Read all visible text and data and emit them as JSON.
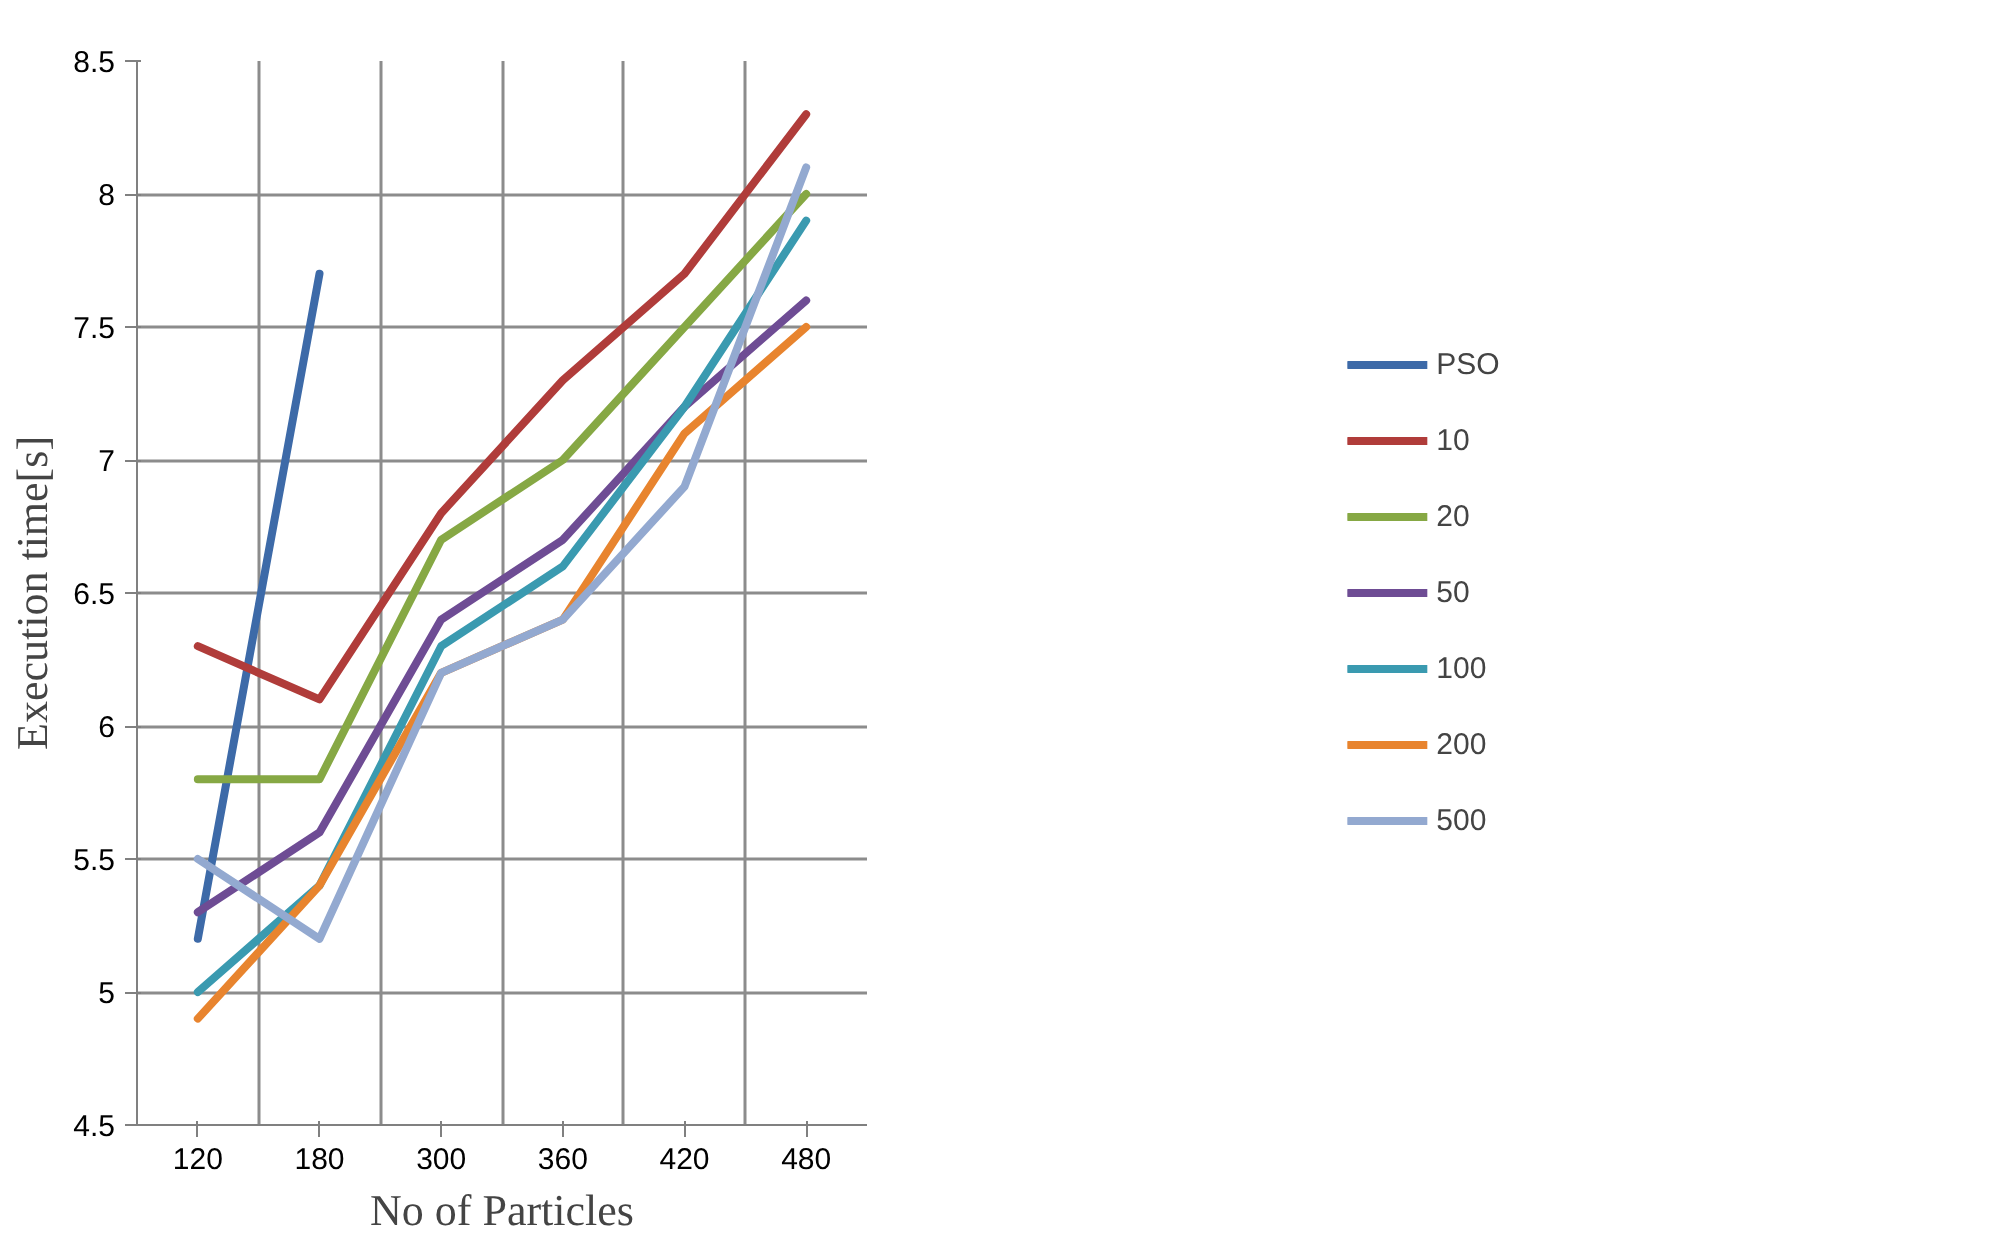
{
  "chart_data": {
    "type": "line",
    "xlabel": "No of Particles",
    "ylabel": "Execution time[s]",
    "categories": [
      "120",
      "180",
      "300",
      "360",
      "420",
      "480"
    ],
    "ylim": [
      4.5,
      8.5
    ],
    "yticks": [
      4.5,
      5,
      5.5,
      6,
      6.5,
      7,
      7.5,
      8,
      8.5
    ],
    "grid": true,
    "legend": "right",
    "series": [
      {
        "name": "PSO",
        "color": "#3d6aa8",
        "values": [
          5.2,
          7.7,
          null,
          null,
          null,
          null
        ]
      },
      {
        "name": "10",
        "color": "#b03c3a",
        "values": [
          6.3,
          6.1,
          6.8,
          7.3,
          7.7,
          8.3
        ]
      },
      {
        "name": "20",
        "color": "#86a844",
        "values": [
          5.8,
          5.8,
          6.7,
          7.0,
          7.5,
          8.0
        ]
      },
      {
        "name": "50",
        "color": "#6e4c94",
        "values": [
          5.3,
          5.6,
          6.4,
          6.7,
          7.2,
          7.6
        ]
      },
      {
        "name": "100",
        "color": "#3a9ab0",
        "values": [
          5.0,
          5.4,
          6.3,
          6.6,
          7.2,
          7.9
        ]
      },
      {
        "name": "200",
        "color": "#e8842e",
        "values": [
          4.9,
          5.4,
          6.2,
          6.4,
          7.1,
          7.5
        ]
      },
      {
        "name": "500",
        "color": "#93a9d0",
        "values": [
          5.5,
          5.2,
          6.2,
          6.4,
          6.9,
          8.1
        ]
      }
    ]
  }
}
